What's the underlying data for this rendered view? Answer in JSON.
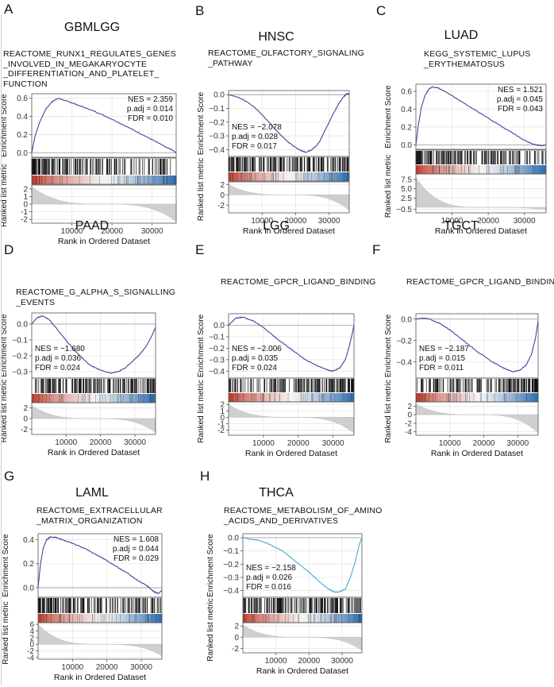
{
  "figure": {
    "axis_labels": {
      "enrichment": "Enrichment Score",
      "ranked": "Ranked list metric",
      "x": "Rank in Ordered Dataset"
    },
    "colors": {
      "curve_blue": "#3b4a9c",
      "curve_cyan": "#4aa8d4",
      "heat_red": "#c0392b",
      "heat_white": "#f4f4f4",
      "heat_blue": "#2f6fb0",
      "metric_gray": "#cfcfcf"
    }
  },
  "chart_data": [
    {
      "type": "line",
      "panel": "A",
      "cohort": "GBMLGG",
      "title_lines": [
        "REACTOME_RUNX1_REGULATES_GENES",
        "_INVOLVED_IN_MEGAKARYOCYTE",
        "_DIFFERENTIATION_AND_PLATELET_",
        "FUNCTION"
      ],
      "stats": [
        "NES = 2.359",
        "p.adj = 0.014",
        "FDR = 0.010"
      ],
      "stats_side": "right",
      "xlabel": "Rank in Ordered Dataset",
      "xlim": [
        0,
        36000
      ],
      "xticks": [
        10000,
        20000,
        30000
      ],
      "es_ylim": [
        -0.05,
        0.65
      ],
      "es_yticks": [
        0.0,
        0.2,
        0.4,
        0.6
      ],
      "es_ytick_labels": [
        "0.0",
        "0.2",
        "0.4",
        "0.6"
      ],
      "es_curve": [
        [
          0,
          0.0
        ],
        [
          800,
          0.18
        ],
        [
          2000,
          0.34
        ],
        [
          3500,
          0.48
        ],
        [
          5000,
          0.56
        ],
        [
          6500,
          0.6
        ],
        [
          8000,
          0.58
        ],
        [
          10000,
          0.55
        ],
        [
          13000,
          0.5
        ],
        [
          16000,
          0.45
        ],
        [
          20000,
          0.37
        ],
        [
          24000,
          0.28
        ],
        [
          28000,
          0.19
        ],
        [
          31000,
          0.12
        ],
        [
          33500,
          0.06
        ],
        [
          35000,
          0.03
        ],
        [
          36000,
          0.0
        ]
      ],
      "curve_color": "blue",
      "metric_ylim": [
        -2.5,
        2.5
      ],
      "metric_yticks": [
        -2,
        -1,
        0,
        1,
        2
      ],
      "metric_ytick_labels": [
        "-2",
        "-1",
        "0",
        "1",
        "2"
      ],
      "metric_range": [
        2.3,
        -2.3
      ],
      "hits_density": "front"
    },
    {
      "type": "line",
      "panel": "B",
      "cohort": "HNSC",
      "title_lines": [
        "REACTOME_OLFACTORY_SIGNALING",
        "_PATHWAY"
      ],
      "stats": [
        "NES = −2.078",
        "p.adj = 0.028",
        "FDR = 0.017"
      ],
      "stats_side": "left",
      "xlabel": "Rank in Ordered Dataset",
      "xlim": [
        0,
        36000
      ],
      "xticks": [
        10000,
        20000,
        30000
      ],
      "es_ylim": [
        -0.45,
        0.03
      ],
      "es_yticks": [
        0.0,
        -0.1,
        -0.2,
        -0.3,
        -0.4
      ],
      "es_ytick_labels": [
        "0.0",
        "−0.1",
        "−0.2",
        "−0.3",
        "−0.4"
      ],
      "es_curve": [
        [
          0,
          0.0
        ],
        [
          3000,
          -0.02
        ],
        [
          6000,
          -0.06
        ],
        [
          9000,
          -0.12
        ],
        [
          12000,
          -0.2
        ],
        [
          15000,
          -0.28
        ],
        [
          18000,
          -0.35
        ],
        [
          21000,
          -0.4
        ],
        [
          23000,
          -0.42
        ],
        [
          25000,
          -0.4
        ],
        [
          27000,
          -0.35
        ],
        [
          29000,
          -0.25
        ],
        [
          31000,
          -0.15
        ],
        [
          33000,
          -0.06
        ],
        [
          34500,
          -0.01
        ],
        [
          35500,
          0.01
        ],
        [
          36000,
          0.0
        ]
      ],
      "curve_color": "blue",
      "metric_ylim": [
        -3.5,
        2.5
      ],
      "metric_yticks": [
        -2,
        0,
        2
      ],
      "metric_ytick_labels": [
        "-2",
        "0",
        "2"
      ],
      "metric_range": [
        2.0,
        -3.0
      ],
      "hits_density": "uniform"
    },
    {
      "type": "line",
      "panel": "C",
      "cohort": "LUAD",
      "title_lines": [
        "KEGG_SYSTEMIC_LUPUS",
        "_ERYTHEMATOSUS"
      ],
      "stats": [
        "NES = 1.521",
        "p.adj = 0.045",
        "FDR = 0.043"
      ],
      "stats_side": "right",
      "xlabel": "Rank in Ordered Dataset",
      "xlim": [
        0,
        36000
      ],
      "xticks": [
        10000,
        20000,
        30000
      ],
      "es_ylim": [
        -0.05,
        0.68
      ],
      "es_yticks": [
        0.0,
        0.2,
        0.4,
        0.6
      ],
      "es_ytick_labels": [
        "0.0",
        "0.2",
        "0.4",
        "0.6"
      ],
      "es_curve": [
        [
          0,
          0.0
        ],
        [
          600,
          0.2
        ],
        [
          1500,
          0.42
        ],
        [
          2500,
          0.55
        ],
        [
          3500,
          0.62
        ],
        [
          4500,
          0.65
        ],
        [
          6000,
          0.64
        ],
        [
          8000,
          0.6
        ],
        [
          12000,
          0.5
        ],
        [
          16000,
          0.4
        ],
        [
          20000,
          0.3
        ],
        [
          24000,
          0.2
        ],
        [
          28000,
          0.1
        ],
        [
          31000,
          0.03
        ],
        [
          33000,
          0.0
        ],
        [
          35000,
          -0.01
        ],
        [
          36000,
          0.0
        ]
      ],
      "curve_color": "blue",
      "metric_ylim": [
        -1.5,
        9
      ],
      "metric_yticks": [
        -0.5,
        2.5,
        5.0,
        7.5
      ],
      "metric_ytick_labels": [
        "−0.5",
        "2.5",
        "5.0",
        "7.5"
      ],
      "metric_range": [
        8.0,
        -0.6
      ],
      "hits_density": "front"
    },
    {
      "type": "line",
      "panel": "D",
      "cohort": "PAAD",
      "title_lines": [
        "REACTOME_G_ALPHA_S_SIGNALLING",
        "_EVENTS"
      ],
      "stats": [
        "NES = −1.680",
        "p.adj = 0.036",
        "FDR = 0.024"
      ],
      "stats_side": "left",
      "xlabel": "Rank in Ordered Dataset",
      "xlim": [
        0,
        36000
      ],
      "xticks": [
        10000,
        20000,
        30000
      ],
      "es_ylim": [
        -0.34,
        0.07
      ],
      "es_yticks": [
        0.0,
        -0.1,
        -0.2,
        -0.3
      ],
      "es_ytick_labels": [
        "0.0",
        "−0.1",
        "−0.2",
        "−0.3"
      ],
      "es_curve": [
        [
          0,
          0.0
        ],
        [
          1500,
          0.04
        ],
        [
          3000,
          0.05
        ],
        [
          5000,
          0.03
        ],
        [
          8000,
          -0.05
        ],
        [
          11000,
          -0.13
        ],
        [
          14000,
          -0.2
        ],
        [
          17000,
          -0.26
        ],
        [
          20000,
          -0.29
        ],
        [
          23000,
          -0.31
        ],
        [
          25000,
          -0.3
        ],
        [
          27000,
          -0.28
        ],
        [
          29000,
          -0.24
        ],
        [
          31000,
          -0.2
        ],
        [
          33000,
          -0.15
        ],
        [
          35000,
          -0.07
        ],
        [
          36000,
          -0.02
        ]
      ],
      "curve_color": "blue",
      "metric_ylim": [
        -3,
        3
      ],
      "metric_yticks": [
        -2,
        0,
        2
      ],
      "metric_ytick_labels": [
        "-2",
        "0",
        "2"
      ],
      "metric_range": [
        2.5,
        -2.6
      ],
      "hits_density": "uniform"
    },
    {
      "type": "line",
      "panel": "E",
      "cohort": "LGG",
      "title_lines": [
        "REACTOME_GPCR_LIGAND_BINDING"
      ],
      "stats": [
        "NES = −2.006",
        "p.adj = 0.035",
        "FDR = 0.024"
      ],
      "stats_side": "left",
      "xlabel": "Rank in Ordered Dataset",
      "xlim": [
        0,
        36000
      ],
      "xticks": [
        10000,
        20000,
        30000
      ],
      "es_ylim": [
        -0.46,
        0.1
      ],
      "es_yticks": [
        0.0,
        -0.1,
        -0.2,
        -0.3,
        -0.4
      ],
      "es_ytick_labels": [
        "0.0",
        "−0.1",
        "−0.2",
        "−0.3",
        "−0.4"
      ],
      "es_curve": [
        [
          0,
          0.0
        ],
        [
          2000,
          0.06
        ],
        [
          4000,
          0.07
        ],
        [
          7000,
          0.04
        ],
        [
          10000,
          -0.02
        ],
        [
          14000,
          -0.12
        ],
        [
          18000,
          -0.21
        ],
        [
          22000,
          -0.3
        ],
        [
          26000,
          -0.36
        ],
        [
          28500,
          -0.39
        ],
        [
          30000,
          -0.4
        ],
        [
          32000,
          -0.37
        ],
        [
          33500,
          -0.3
        ],
        [
          34500,
          -0.2
        ],
        [
          35300,
          -0.1
        ],
        [
          36000,
          0.0
        ]
      ],
      "curve_color": "blue",
      "metric_ylim": [
        -2.8,
        2.4
      ],
      "metric_yticks": [
        -2,
        -1,
        0,
        1,
        2
      ],
      "metric_ytick_labels": [
        "-2",
        "-1",
        "0",
        "1",
        "2"
      ],
      "metric_range": [
        2.0,
        -2.5
      ],
      "hits_density": "back"
    },
    {
      "type": "line",
      "panel": "F",
      "cohort": "TGCT",
      "title_lines": [
        "REACTOME_GPCR_LIGAND_BINDING"
      ],
      "stats": [
        "NES = −2.187",
        "p.adj = 0.015",
        "FDR = 0.011"
      ],
      "stats_side": "left",
      "xlabel": "Rank in Ordered Dataset",
      "xlim": [
        0,
        36000
      ],
      "xticks": [
        10000,
        20000,
        30000
      ],
      "es_ylim": [
        -0.55,
        0.05
      ],
      "es_yticks": [
        0.0,
        -0.2,
        -0.4
      ],
      "es_ytick_labels": [
        "0.0",
        "−0.2",
        "−0.4"
      ],
      "es_curve": [
        [
          0,
          0.0
        ],
        [
          2000,
          0.01
        ],
        [
          4000,
          0.0
        ],
        [
          7000,
          -0.04
        ],
        [
          10000,
          -0.1
        ],
        [
          14000,
          -0.2
        ],
        [
          18000,
          -0.3
        ],
        [
          22000,
          -0.39
        ],
        [
          26000,
          -0.46
        ],
        [
          28500,
          -0.49
        ],
        [
          30500,
          -0.48
        ],
        [
          32500,
          -0.43
        ],
        [
          34000,
          -0.33
        ],
        [
          35200,
          -0.18
        ],
        [
          36000,
          -0.02
        ]
      ],
      "curve_color": "blue",
      "metric_ylim": [
        -4.8,
        3
      ],
      "metric_yticks": [
        -4,
        -2,
        0,
        2
      ],
      "metric_ytick_labels": [
        "-4",
        "-2",
        "0",
        "2"
      ],
      "metric_range": [
        2.5,
        -4.3
      ],
      "hits_density": "back"
    },
    {
      "type": "line",
      "panel": "G",
      "cohort": "LAML",
      "title_lines": [
        "REACTOME_EXTRACELLULAR",
        "_MATRIX_ORGANIZATION"
      ],
      "stats": [
        "NES = 1.608",
        "p.adj = 0.044",
        "FDR = 0.029"
      ],
      "stats_side": "right",
      "xlabel": "Rank in Ordered Dataset",
      "xlim": [
        0,
        36000
      ],
      "xticks": [
        10000,
        20000,
        30000
      ],
      "es_ylim": [
        -0.08,
        0.45
      ],
      "es_yticks": [
        0.0,
        0.2,
        0.4
      ],
      "es_ytick_labels": [
        "0.0",
        "0.2",
        "0.4"
      ],
      "es_curve": [
        [
          0,
          0.0
        ],
        [
          700,
          0.2
        ],
        [
          1500,
          0.33
        ],
        [
          2500,
          0.4
        ],
        [
          3500,
          0.42
        ],
        [
          5000,
          0.42
        ],
        [
          7000,
          0.4
        ],
        [
          10000,
          0.37
        ],
        [
          14000,
          0.32
        ],
        [
          18000,
          0.26
        ],
        [
          22000,
          0.19
        ],
        [
          26000,
          0.12
        ],
        [
          29000,
          0.06
        ],
        [
          31500,
          0.02
        ],
        [
          33500,
          -0.03
        ],
        [
          35000,
          -0.05
        ],
        [
          36000,
          -0.02
        ]
      ],
      "curve_color": "blue",
      "metric_ylim": [
        -4.5,
        6.5
      ],
      "metric_yticks": [
        -4,
        -2,
        0,
        2,
        4,
        6
      ],
      "metric_ytick_labels": [
        "-4",
        "-2",
        "0",
        "2",
        "4",
        "6"
      ],
      "metric_range": [
        6.0,
        -3.5
      ],
      "hits_density": "front"
    },
    {
      "type": "line",
      "panel": "H",
      "cohort": "THCA",
      "title_lines": [
        "REACTOME_METABOLISM_OF_AMINO",
        "_ACIDS_AND_DERIVATIVES"
      ],
      "stats": [
        "NES = −2.158",
        "p.adj = 0.026",
        "FDR = 0.016"
      ],
      "stats_side": "left",
      "xlabel": "Rank in Ordered Dataset",
      "xlim": [
        0,
        36000
      ],
      "xticks": [
        10000,
        20000,
        30000
      ],
      "es_ylim": [
        -0.45,
        0.03
      ],
      "es_yticks": [
        0.0,
        -0.1,
        -0.2,
        -0.3,
        -0.4
      ],
      "es_ytick_labels": [
        "0.0",
        "−0.1",
        "−0.2",
        "−0.3",
        "−0.4"
      ],
      "es_curve": [
        [
          0,
          0.0
        ],
        [
          2000,
          -0.01
        ],
        [
          5000,
          -0.02
        ],
        [
          8000,
          -0.05
        ],
        [
          12000,
          -0.1
        ],
        [
          16000,
          -0.18
        ],
        [
          20000,
          -0.26
        ],
        [
          23000,
          -0.33
        ],
        [
          25500,
          -0.38
        ],
        [
          27500,
          -0.41
        ],
        [
          29000,
          -0.41
        ],
        [
          31000,
          -0.39
        ],
        [
          32500,
          -0.3
        ],
        [
          34000,
          -0.18
        ],
        [
          35200,
          -0.05
        ],
        [
          36000,
          0.0
        ]
      ],
      "curve_color": "cyan",
      "metric_ylim": [
        -2.8,
        2.6
      ],
      "metric_yticks": [
        -2,
        0,
        2
      ],
      "metric_ytick_labels": [
        "-2",
        "0",
        "2"
      ],
      "metric_range": [
        2.2,
        -2.4
      ],
      "hits_density": "uniform"
    }
  ]
}
